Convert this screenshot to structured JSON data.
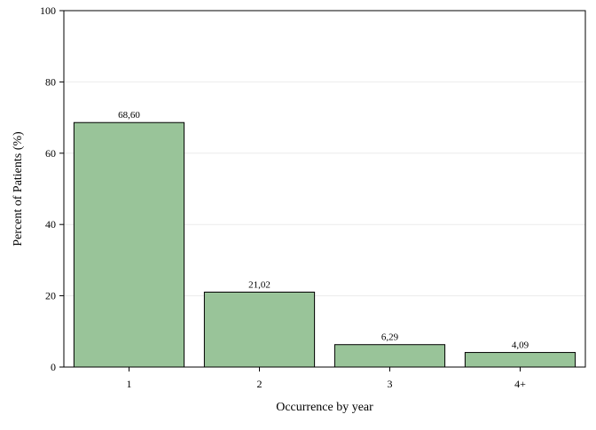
{
  "chart_data": {
    "type": "bar",
    "categories": [
      "1",
      "2",
      "3",
      "4+"
    ],
    "values": [
      68.6,
      21.02,
      6.29,
      4.09
    ],
    "data_labels": [
      "68,60",
      "21,02",
      "6,29",
      "4,09"
    ],
    "xlabel": "Occurrence by year",
    "ylabel": "Percent of Patients (%)",
    "ylim": [
      0,
      100
    ],
    "yticks": [
      0,
      20,
      40,
      60,
      80,
      100
    ],
    "ytick_labels": [
      "0",
      "20",
      "40",
      "60",
      "80",
      "100"
    ],
    "grid": true,
    "bar_color": "#99c499",
    "bar_edge_color": "#000000"
  }
}
